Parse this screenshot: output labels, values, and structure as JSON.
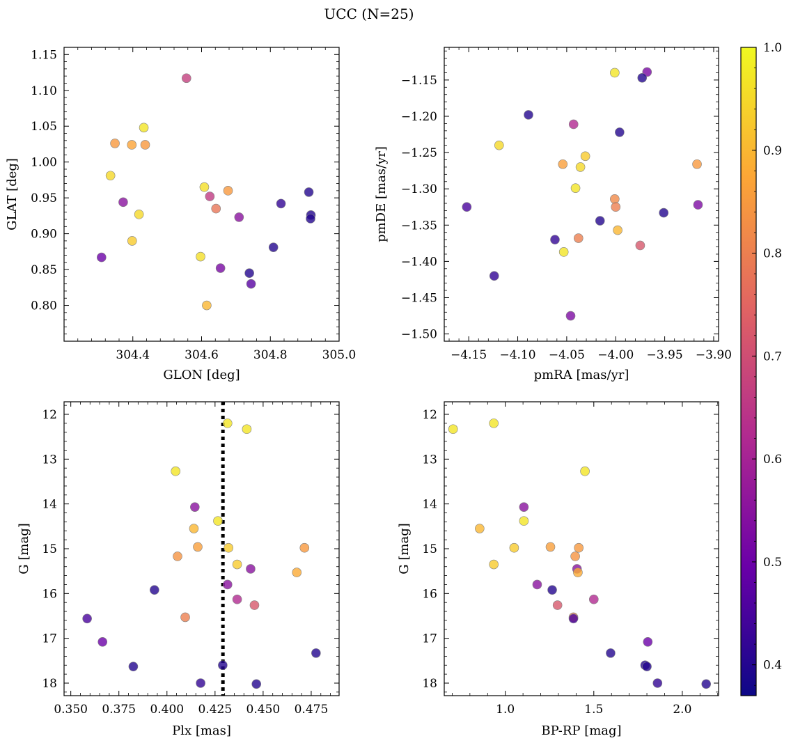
{
  "figure_title": "UCC (N=25)",
  "colorbar": {
    "range": [
      0.37,
      1.0
    ],
    "tick_values": [
      0.4,
      0.5,
      0.6,
      0.7,
      0.8,
      0.9,
      1.0
    ],
    "tick_labels": [
      "0.4",
      "0.5",
      "0.6",
      "0.7",
      "0.8",
      "0.9",
      "1.0"
    ],
    "colormap": "plasma",
    "colormap_stops": [
      "#0d0887",
      "#6a00a8",
      "#b12a90",
      "#e16462",
      "#fca636",
      "#f0f921"
    ]
  },
  "point_style": {
    "alpha": 0.8,
    "edge_color": "#808080"
  },
  "chart_data": [
    {
      "type": "scatter",
      "xlabel": "GLON [deg]",
      "ylabel": "GLAT [deg]",
      "xlim": [
        304.2,
        305.0
      ],
      "ylim": [
        0.75,
        1.16
      ],
      "y_inverted": false,
      "xticks": [
        304.4,
        304.6,
        304.8,
        305.0
      ],
      "xtick_labels": [
        "304.4",
        "304.6",
        "304.8",
        "305.0"
      ],
      "yticks": [
        0.8,
        0.85,
        0.9,
        0.95,
        1.0,
        1.05,
        1.1,
        1.15
      ],
      "ytick_labels": [
        "0.80",
        "0.85",
        "0.90",
        "0.95",
        "1.00",
        "1.05",
        "1.10",
        "1.15"
      ],
      "points": [
        {
          "x": 304.556,
          "y": 1.117,
          "c": 0.67
        },
        {
          "x": 304.432,
          "y": 1.048,
          "c": 0.97
        },
        {
          "x": 304.348,
          "y": 1.026,
          "c": 0.85
        },
        {
          "x": 304.397,
          "y": 1.024,
          "c": 0.87
        },
        {
          "x": 304.436,
          "y": 1.024,
          "c": 0.85
        },
        {
          "x": 304.335,
          "y": 0.981,
          "c": 0.95
        },
        {
          "x": 304.608,
          "y": 0.965,
          "c": 0.96
        },
        {
          "x": 304.677,
          "y": 0.96,
          "c": 0.85
        },
        {
          "x": 304.912,
          "y": 0.958,
          "c": 0.4
        },
        {
          "x": 304.624,
          "y": 0.952,
          "c": 0.66
        },
        {
          "x": 304.372,
          "y": 0.944,
          "c": 0.55
        },
        {
          "x": 304.831,
          "y": 0.942,
          "c": 0.42
        },
        {
          "x": 304.642,
          "y": 0.935,
          "c": 0.78
        },
        {
          "x": 304.418,
          "y": 0.927,
          "c": 0.95
        },
        {
          "x": 304.918,
          "y": 0.926,
          "c": 0.4
        },
        {
          "x": 304.709,
          "y": 0.923,
          "c": 0.55
        },
        {
          "x": 304.917,
          "y": 0.921,
          "c": 0.4
        },
        {
          "x": 304.398,
          "y": 0.89,
          "c": 0.93
        },
        {
          "x": 304.809,
          "y": 0.881,
          "c": 0.4
        },
        {
          "x": 304.597,
          "y": 0.868,
          "c": 0.96
        },
        {
          "x": 304.309,
          "y": 0.867,
          "c": 0.5
        },
        {
          "x": 304.655,
          "y": 0.852,
          "c": 0.52
        },
        {
          "x": 304.739,
          "y": 0.845,
          "c": 0.4
        },
        {
          "x": 304.744,
          "y": 0.83,
          "c": 0.47
        },
        {
          "x": 304.615,
          "y": 0.8,
          "c": 0.9
        }
      ]
    },
    {
      "type": "scatter",
      "xlabel": "pmRA [mas/yr]",
      "ylabel": "pmDE [mas/yr]",
      "xlim": [
        -4.175,
        -3.895
      ],
      "ylim": [
        -1.51,
        -1.105
      ],
      "y_inverted": false,
      "xticks": [
        -4.15,
        -4.1,
        -4.05,
        -4.0,
        -3.95,
        -3.9
      ],
      "xtick_labels": [
        "−4.15",
        "−4.10",
        "−4.05",
        "−4.00",
        "−3.95",
        "−3.90"
      ],
      "yticks": [
        -1.5,
        -1.45,
        -1.4,
        -1.35,
        -1.3,
        -1.25,
        -1.2,
        -1.15
      ],
      "ytick_labels": [
        "−1.50",
        "−1.45",
        "−1.40",
        "−1.35",
        "−1.30",
        "−1.25",
        "−1.20",
        "−1.15"
      ],
      "points": [
        {
          "x": -4.001,
          "y": -1.14,
          "c": 0.97
        },
        {
          "x": -3.968,
          "y": -1.139,
          "c": 0.52
        },
        {
          "x": -3.973,
          "y": -1.147,
          "c": 0.4
        },
        {
          "x": -4.089,
          "y": -1.198,
          "c": 0.4
        },
        {
          "x": -4.043,
          "y": -1.211,
          "c": 0.62
        },
        {
          "x": -3.996,
          "y": -1.222,
          "c": 0.4
        },
        {
          "x": -4.119,
          "y": -1.24,
          "c": 0.95
        },
        {
          "x": -4.031,
          "y": -1.255,
          "c": 0.93
        },
        {
          "x": -4.054,
          "y": -1.266,
          "c": 0.86
        },
        {
          "x": -3.917,
          "y": -1.266,
          "c": 0.85
        },
        {
          "x": -4.036,
          "y": -1.27,
          "c": 0.95
        },
        {
          "x": -4.041,
          "y": -1.299,
          "c": 0.97
        },
        {
          "x": -4.001,
          "y": -1.314,
          "c": 0.82
        },
        {
          "x": -4.0,
          "y": -1.325,
          "c": 0.8
        },
        {
          "x": -4.152,
          "y": -1.325,
          "c": 0.45
        },
        {
          "x": -3.916,
          "y": -1.322,
          "c": 0.53
        },
        {
          "x": -3.951,
          "y": -1.333,
          "c": 0.4
        },
        {
          "x": -4.016,
          "y": -1.344,
          "c": 0.4
        },
        {
          "x": -3.998,
          "y": -1.357,
          "c": 0.9
        },
        {
          "x": -4.062,
          "y": -1.37,
          "c": 0.42
        },
        {
          "x": -4.038,
          "y": -1.368,
          "c": 0.8
        },
        {
          "x": -3.975,
          "y": -1.378,
          "c": 0.72
        },
        {
          "x": -4.053,
          "y": -1.387,
          "c": 0.97
        },
        {
          "x": -4.124,
          "y": -1.42,
          "c": 0.42
        },
        {
          "x": -4.046,
          "y": -1.475,
          "c": 0.53
        }
      ]
    },
    {
      "type": "scatter",
      "xlabel": "Plx [mas]",
      "ylabel": "G [mag]",
      "xlim": [
        0.3465,
        0.4895
      ],
      "ylim": [
        11.72,
        18.28
      ],
      "y_inverted": true,
      "xticks": [
        0.35,
        0.375,
        0.4,
        0.425,
        0.45,
        0.475
      ],
      "xtick_labels": [
        "0.350",
        "0.375",
        "0.400",
        "0.425",
        "0.450",
        "0.475"
      ],
      "yticks": [
        12,
        13,
        14,
        15,
        16,
        17,
        18
      ],
      "ytick_labels": [
        "12",
        "13",
        "14",
        "15",
        "16",
        "17",
        "18"
      ],
      "vline": {
        "x": 0.4291
      },
      "points": [
        {
          "x": 0.4315,
          "y": 12.2,
          "c": 0.97
        },
        {
          "x": 0.4415,
          "y": 12.33,
          "c": 0.97
        },
        {
          "x": 0.4045,
          "y": 13.27,
          "c": 0.97
        },
        {
          "x": 0.4145,
          "y": 14.07,
          "c": 0.55
        },
        {
          "x": 0.4265,
          "y": 14.38,
          "c": 0.97
        },
        {
          "x": 0.414,
          "y": 14.55,
          "c": 0.9
        },
        {
          "x": 0.416,
          "y": 14.96,
          "c": 0.86
        },
        {
          "x": 0.432,
          "y": 14.98,
          "c": 0.93
        },
        {
          "x": 0.4715,
          "y": 14.98,
          "c": 0.85
        },
        {
          "x": 0.4055,
          "y": 15.17,
          "c": 0.84
        },
        {
          "x": 0.4365,
          "y": 15.35,
          "c": 0.93
        },
        {
          "x": 0.4435,
          "y": 15.45,
          "c": 0.55
        },
        {
          "x": 0.4675,
          "y": 15.53,
          "c": 0.88
        },
        {
          "x": 0.4315,
          "y": 15.8,
          "c": 0.55
        },
        {
          "x": 0.3935,
          "y": 15.92,
          "c": 0.4
        },
        {
          "x": 0.4365,
          "y": 16.13,
          "c": 0.62
        },
        {
          "x": 0.4455,
          "y": 16.26,
          "c": 0.72
        },
        {
          "x": 0.4095,
          "y": 16.53,
          "c": 0.8
        },
        {
          "x": 0.3585,
          "y": 16.56,
          "c": 0.45
        },
        {
          "x": 0.3665,
          "y": 17.08,
          "c": 0.5
        },
        {
          "x": 0.4775,
          "y": 17.33,
          "c": 0.4
        },
        {
          "x": 0.429,
          "y": 17.6,
          "c": 0.4
        },
        {
          "x": 0.3825,
          "y": 17.63,
          "c": 0.4
        },
        {
          "x": 0.4175,
          "y": 18.0,
          "c": 0.42
        },
        {
          "x": 0.4465,
          "y": 18.02,
          "c": 0.4
        }
      ]
    },
    {
      "type": "scatter",
      "xlabel": "BP-RP [mag]",
      "ylabel": "G [mag]",
      "xlim": [
        0.655,
        2.205
      ],
      "ylim": [
        11.72,
        18.28
      ],
      "y_inverted": true,
      "xticks": [
        1.0,
        1.5,
        2.0
      ],
      "xtick_labels": [
        "1.0",
        "1.5",
        "2.0"
      ],
      "yticks": [
        12,
        13,
        14,
        15,
        16,
        17,
        18
      ],
      "ytick_labels": [
        "12",
        "13",
        "14",
        "15",
        "16",
        "17",
        "18"
      ],
      "points": [
        {
          "x": 0.935,
          "y": 12.2,
          "c": 0.97
        },
        {
          "x": 0.705,
          "y": 12.33,
          "c": 0.97
        },
        {
          "x": 1.45,
          "y": 13.27,
          "c": 0.97
        },
        {
          "x": 1.105,
          "y": 14.07,
          "c": 0.55
        },
        {
          "x": 1.105,
          "y": 14.38,
          "c": 0.97
        },
        {
          "x": 0.855,
          "y": 14.55,
          "c": 0.9
        },
        {
          "x": 1.255,
          "y": 14.96,
          "c": 0.86
        },
        {
          "x": 1.05,
          "y": 14.98,
          "c": 0.93
        },
        {
          "x": 1.415,
          "y": 14.98,
          "c": 0.85
        },
        {
          "x": 1.395,
          "y": 15.17,
          "c": 0.84
        },
        {
          "x": 0.935,
          "y": 15.35,
          "c": 0.93
        },
        {
          "x": 1.405,
          "y": 15.45,
          "c": 0.55
        },
        {
          "x": 1.41,
          "y": 15.53,
          "c": 0.88
        },
        {
          "x": 1.18,
          "y": 15.8,
          "c": 0.55
        },
        {
          "x": 1.265,
          "y": 15.92,
          "c": 0.4
        },
        {
          "x": 1.5,
          "y": 16.13,
          "c": 0.62
        },
        {
          "x": 1.295,
          "y": 16.26,
          "c": 0.72
        },
        {
          "x": 1.385,
          "y": 16.53,
          "c": 0.8
        },
        {
          "x": 1.385,
          "y": 16.56,
          "c": 0.45
        },
        {
          "x": 1.805,
          "y": 17.08,
          "c": 0.5
        },
        {
          "x": 1.595,
          "y": 17.33,
          "c": 0.4
        },
        {
          "x": 1.79,
          "y": 17.6,
          "c": 0.4
        },
        {
          "x": 1.8,
          "y": 17.63,
          "c": 0.4
        },
        {
          "x": 1.86,
          "y": 18.0,
          "c": 0.42
        },
        {
          "x": 2.135,
          "y": 18.02,
          "c": 0.4
        }
      ]
    }
  ]
}
